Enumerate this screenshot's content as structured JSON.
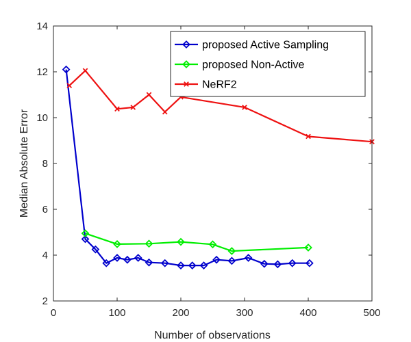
{
  "chart_data": {
    "type": "line",
    "title": "",
    "xlabel": "Number of observations",
    "ylabel": "Median Absolute Error",
    "xlim": [
      0,
      500
    ],
    "ylim": [
      2,
      14
    ],
    "xticks": [
      0,
      100,
      200,
      300,
      400,
      500
    ],
    "yticks": [
      2,
      4,
      6,
      8,
      10,
      12,
      14
    ],
    "grid": false,
    "legend_position": "top-right",
    "series": [
      {
        "name": "proposed Active Sampling",
        "color": "#0000cc",
        "marker": "diamond",
        "x": [
          20,
          50,
          66,
          83,
          100,
          116,
          133,
          150,
          175,
          200,
          218,
          236,
          256,
          280,
          306,
          331,
          352,
          375,
          402
        ],
        "y": [
          12.1,
          4.7,
          4.25,
          3.65,
          3.88,
          3.8,
          3.88,
          3.68,
          3.65,
          3.55,
          3.55,
          3.55,
          3.8,
          3.75,
          3.88,
          3.62,
          3.6,
          3.65,
          3.65
        ]
      },
      {
        "name": "proposed Non-Active",
        "color": "#00ee00",
        "marker": "diamond",
        "x": [
          50,
          100,
          150,
          200,
          250,
          280,
          400
        ],
        "y": [
          4.95,
          4.48,
          4.5,
          4.58,
          4.47,
          4.18,
          4.33
        ]
      },
      {
        "name": "NeRF2",
        "color": "#ee1111",
        "marker": "x",
        "x": [
          25,
          50,
          100,
          125,
          150,
          175,
          200,
          300,
          400,
          500
        ],
        "y": [
          11.4,
          12.05,
          10.38,
          10.45,
          11.0,
          10.25,
          10.9,
          10.45,
          9.18,
          8.95
        ]
      }
    ]
  }
}
